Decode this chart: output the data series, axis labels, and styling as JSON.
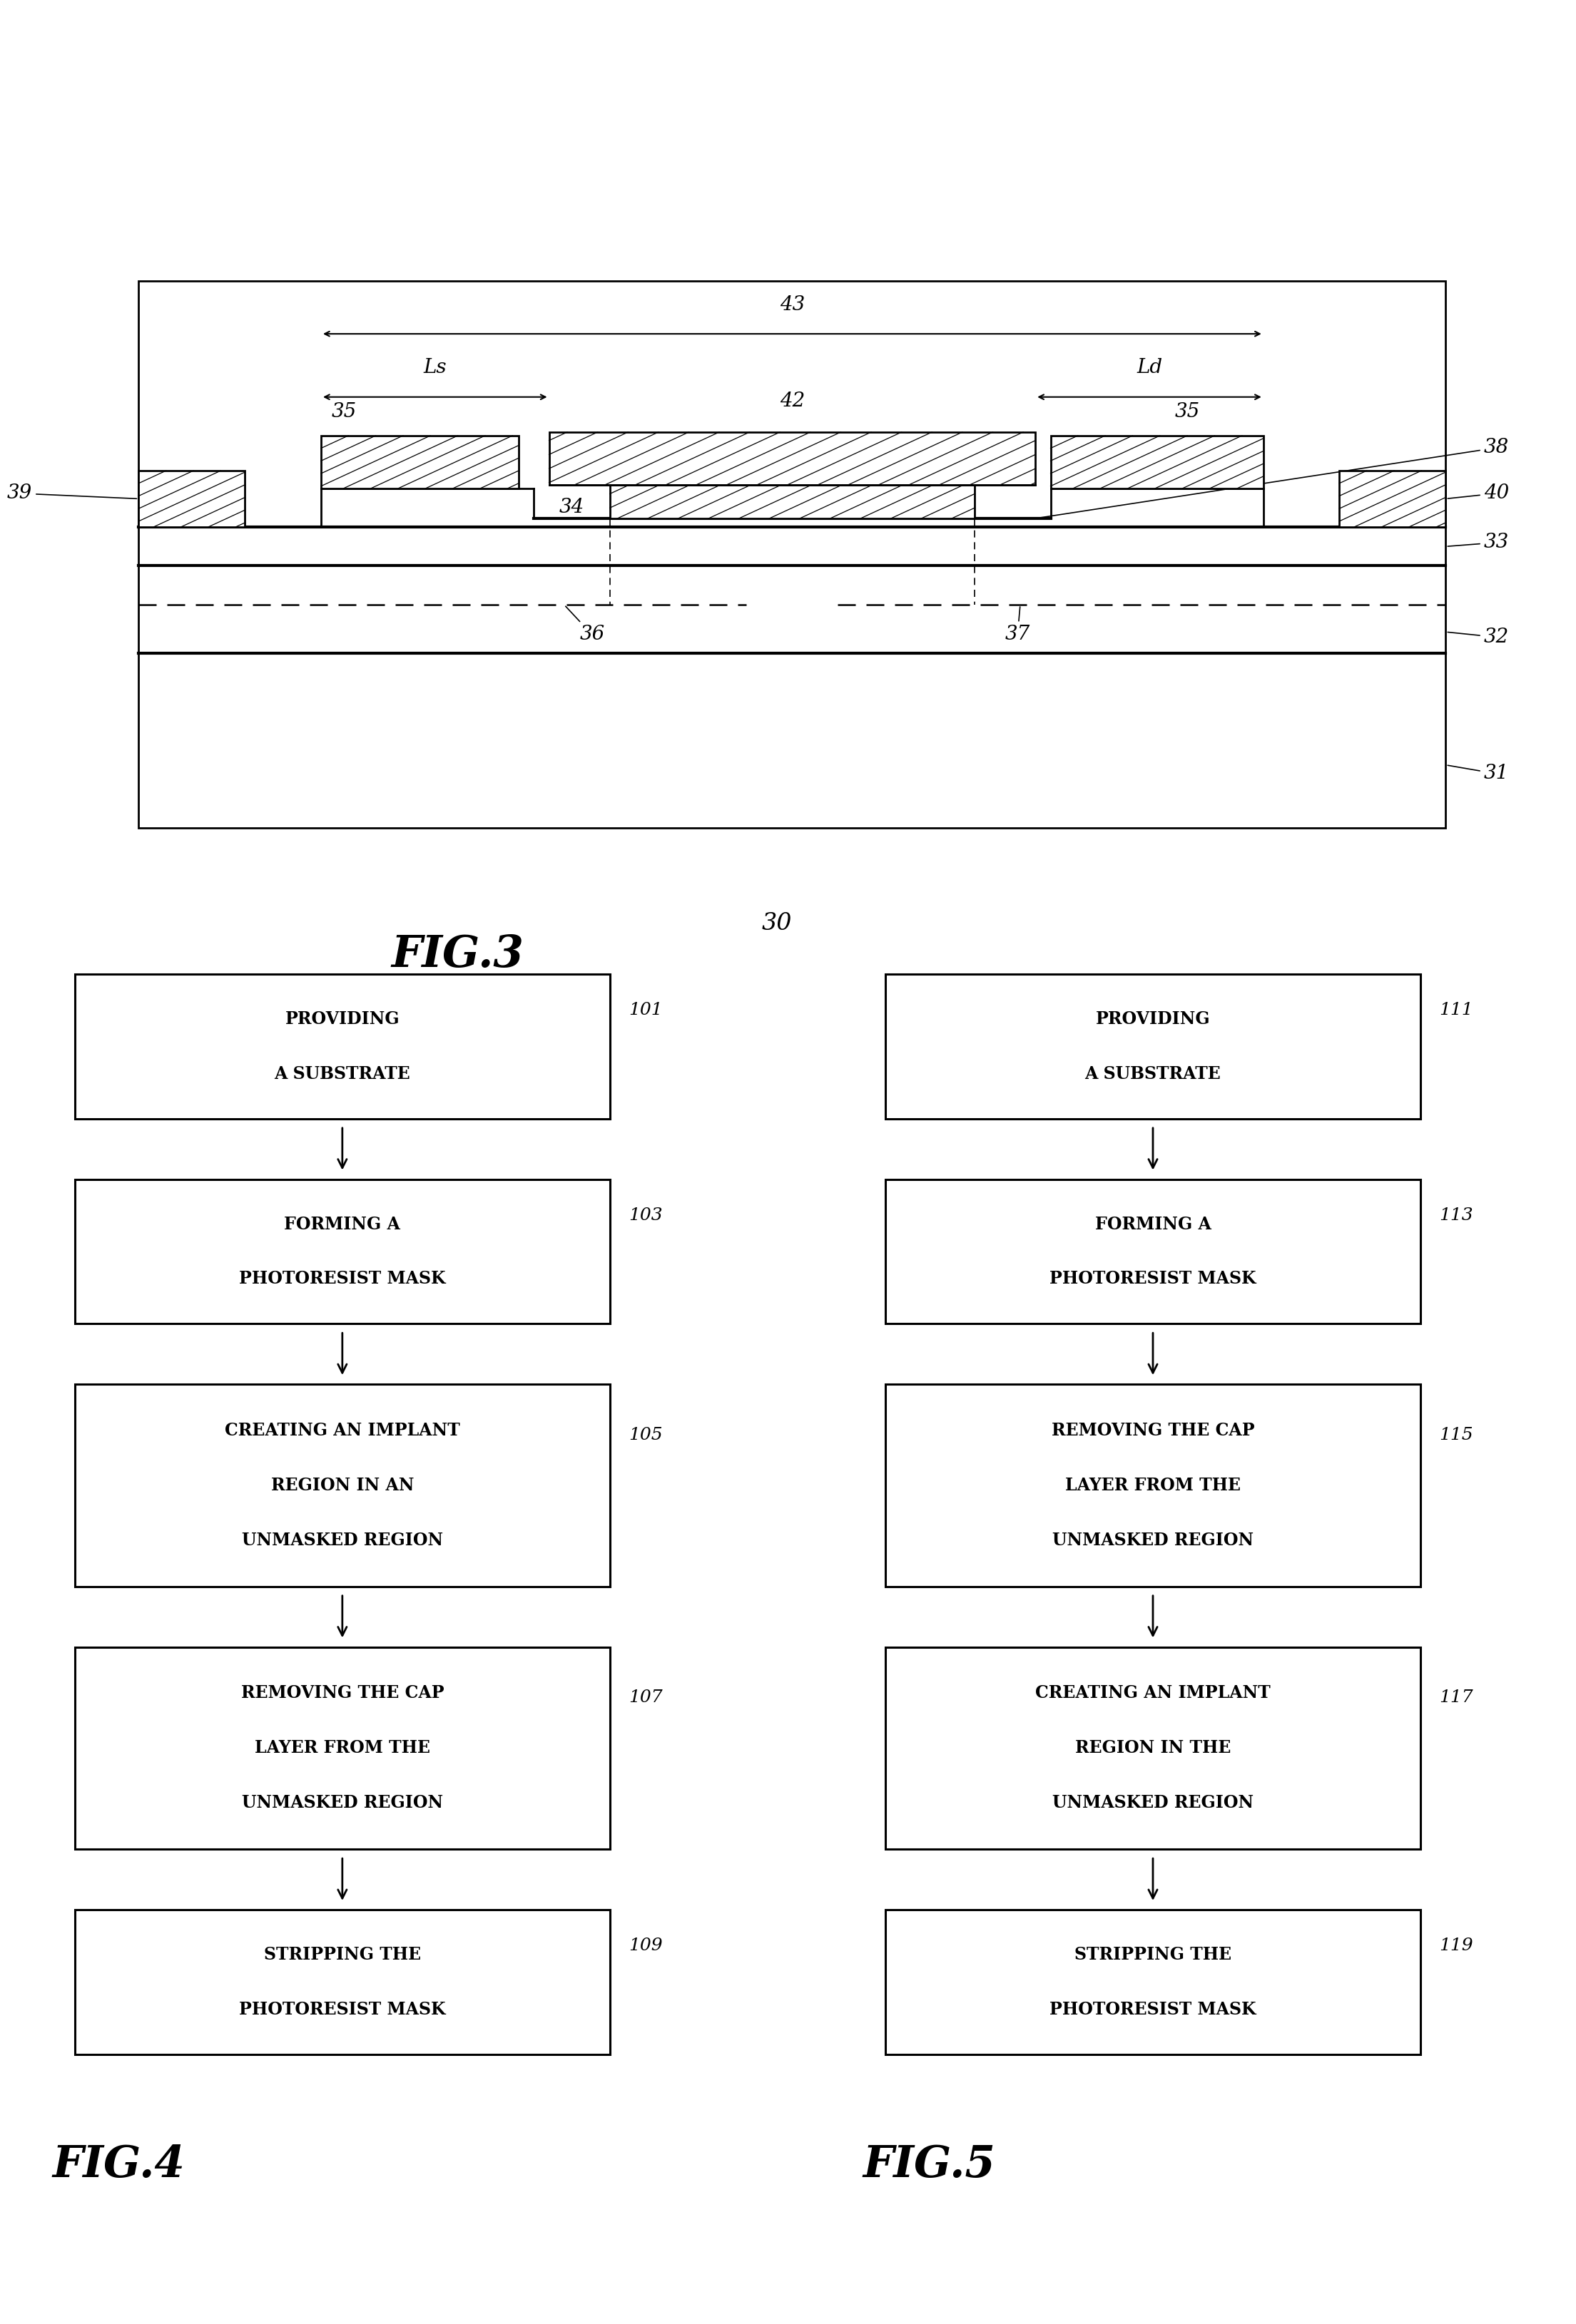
{
  "fig_width": 23.67,
  "fig_height": 33.74,
  "bg_color": "#ffffff",
  "fig3": {
    "title": "FIG.3",
    "label": "30"
  },
  "fig4": {
    "title": "FIG.4",
    "boxes": [
      {
        "id": "101",
        "text": "PROVIDING\nA SUBSTRATE"
      },
      {
        "id": "103",
        "text": "FORMING A\nPHOTORESIST MASK"
      },
      {
        "id": "105",
        "text": "CREATING AN IMPLANT\nREGION IN AN\nUNMASKED REGION"
      },
      {
        "id": "107",
        "text": "REMOVING THE CAP\nLAYER FROM THE\nUNMASKED REGION"
      },
      {
        "id": "109",
        "text": "STRIPPING THE\nPHOTORESIST MASK"
      }
    ]
  },
  "fig5": {
    "title": "FIG.5",
    "boxes": [
      {
        "id": "111",
        "text": "PROVIDING\nA SUBSTRATE"
      },
      {
        "id": "113",
        "text": "FORMING A\nPHOTORESIST MASK"
      },
      {
        "id": "115",
        "text": "REMOVING THE CAP\nLAYER FROM THE\nUNMASKED REGION"
      },
      {
        "id": "117",
        "text": "CREATING AN IMPLANT\nREGION IN THE\nUNMASKED REGION"
      },
      {
        "id": "119",
        "text": "STRIPPING THE\nPHOTORESIST MASK"
      }
    ]
  }
}
